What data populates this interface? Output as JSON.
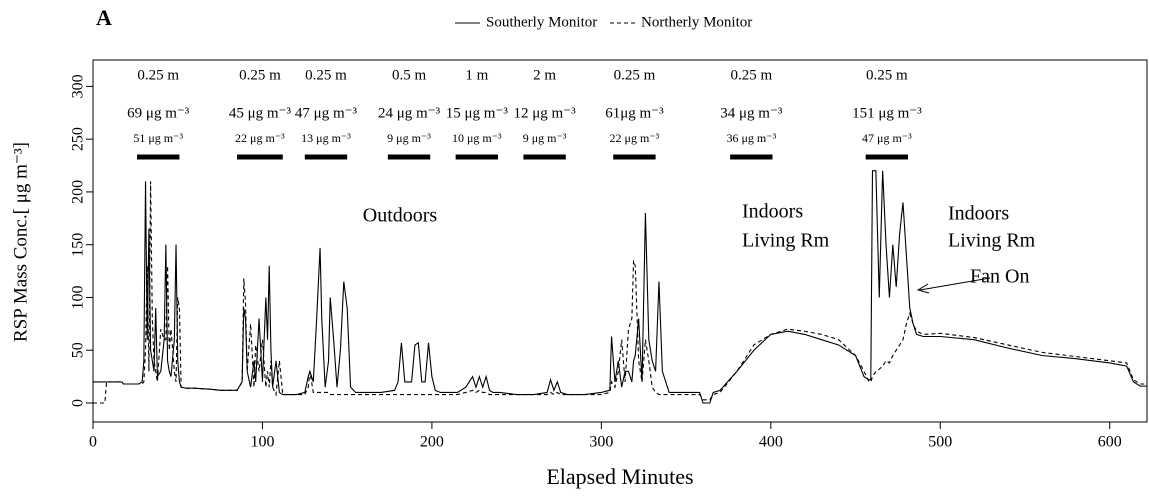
{
  "chart_data": {
    "type": "line",
    "panel_label": "A",
    "xlabel": "Elapsed Minutes",
    "ylabel": "RSP Mass Conc.[ μg m⁻³]",
    "xlim": [
      0,
      622
    ],
    "ylim": [
      -18,
      325
    ],
    "xticks": [
      0,
      100,
      200,
      300,
      400,
      500,
      600
    ],
    "yticks": [
      0,
      50,
      100,
      150,
      200,
      250,
      300
    ],
    "grid": false,
    "legend": "top",
    "x": [
      0,
      7,
      8,
      17,
      18,
      27,
      29,
      30,
      31,
      32,
      33,
      34,
      35,
      36,
      37,
      38,
      40,
      42,
      43,
      44,
      45,
      46,
      48,
      49,
      50,
      51,
      52,
      55,
      60,
      70,
      75,
      80,
      85,
      88,
      89,
      90,
      91,
      93,
      95,
      96,
      98,
      100,
      102,
      103,
      104,
      105,
      106,
      108,
      110,
      112,
      115,
      120,
      125,
      127,
      128,
      130,
      132,
      134,
      135,
      137,
      139,
      140,
      142,
      144,
      146,
      148,
      150,
      152,
      155,
      160,
      170,
      178,
      180,
      182,
      184,
      186,
      188,
      190,
      192,
      194,
      196,
      198,
      200,
      202,
      205,
      210,
      215,
      220,
      224,
      226,
      228,
      230,
      232,
      234,
      236,
      240,
      250,
      260,
      268,
      270,
      272,
      274,
      276,
      280,
      290,
      300,
      305,
      306,
      308,
      310,
      312,
      314,
      316,
      318,
      319,
      320,
      322,
      324,
      326,
      328,
      330,
      332,
      334,
      336,
      340,
      350,
      358,
      360,
      364,
      366,
      370,
      380,
      390,
      400,
      410,
      420,
      430,
      440,
      450,
      455,
      458,
      459,
      460,
      462,
      464,
      466,
      468,
      470,
      472,
      474,
      476,
      478,
      480,
      482,
      484,
      486,
      490,
      500,
      520,
      540,
      560,
      580,
      600,
      610,
      614,
      618,
      622
    ],
    "series": [
      {
        "name": "Southerly Monitor",
        "color": "#000000",
        "line_style": "solid",
        "values": [
          20,
          20,
          20,
          20,
          18,
          18,
          20,
          40,
          210,
          60,
          165,
          50,
          40,
          30,
          90,
          25,
          30,
          60,
          150,
          40,
          30,
          25,
          60,
          150,
          40,
          20,
          15,
          14,
          14,
          13,
          12,
          12,
          12,
          20,
          90,
          80,
          30,
          15,
          40,
          20,
          80,
          20,
          100,
          60,
          130,
          50,
          15,
          40,
          10,
          8,
          8,
          8,
          10,
          25,
          30,
          20,
          80,
          147,
          80,
          15,
          40,
          100,
          60,
          15,
          50,
          115,
          90,
          15,
          10,
          10,
          10,
          12,
          20,
          57,
          20,
          20,
          20,
          55,
          57,
          20,
          20,
          57,
          25,
          12,
          10,
          10,
          10,
          15,
          25,
          15,
          25,
          15,
          25,
          12,
          10,
          10,
          8,
          8,
          10,
          22,
          12,
          20,
          10,
          8,
          8,
          10,
          12,
          63,
          20,
          40,
          15,
          30,
          30,
          20,
          40,
          45,
          80,
          20,
          180,
          60,
          40,
          30,
          115,
          30,
          10,
          10,
          10,
          0,
          0,
          10,
          12,
          30,
          50,
          65,
          68,
          65,
          60,
          55,
          45,
          25,
          22,
          22,
          220,
          220,
          100,
          220,
          150,
          100,
          150,
          110,
          160,
          190,
          140,
          90,
          75,
          65,
          63,
          63,
          60,
          52,
          45,
          42,
          38,
          35,
          20,
          16,
          16
        ]
      },
      {
        "name": "Northerly Monitor",
        "color": "#000000",
        "line_style": "dashed",
        "values": [
          0,
          0,
          20,
          20,
          18,
          18,
          18,
          20,
          50,
          130,
          30,
          210,
          80,
          40,
          30,
          20,
          70,
          60,
          60,
          130,
          50,
          70,
          30,
          20,
          100,
          90,
          15,
          14,
          14,
          13,
          12,
          12,
          12,
          20,
          118,
          95,
          30,
          75,
          15,
          55,
          30,
          60,
          15,
          30,
          15,
          40,
          15,
          8,
          40,
          8,
          8,
          8,
          8,
          15,
          30,
          10,
          10,
          10,
          10,
          10,
          10,
          8,
          8,
          8,
          8,
          8,
          8,
          8,
          8,
          8,
          8,
          8,
          8,
          8,
          8,
          8,
          8,
          8,
          8,
          8,
          8,
          8,
          8,
          8,
          8,
          8,
          8,
          10,
          12,
          10,
          12,
          10,
          10,
          8,
          8,
          8,
          8,
          8,
          8,
          10,
          8,
          10,
          8,
          8,
          8,
          8,
          10,
          20,
          15,
          30,
          60,
          20,
          70,
          80,
          135,
          130,
          40,
          20,
          60,
          40,
          15,
          10,
          8,
          8,
          8,
          8,
          8,
          3,
          3,
          8,
          10,
          30,
          55,
          65,
          70,
          68,
          65,
          60,
          45,
          30,
          20,
          20,
          25,
          30,
          32,
          35,
          40,
          38,
          45,
          50,
          55,
          60,
          75,
          85,
          75,
          68,
          65,
          66,
          62,
          55,
          48,
          44,
          40,
          38,
          22,
          18,
          18
        ]
      }
    ],
    "segments": [
      {
        "start": 26,
        "end": 51,
        "distance": "0.25 m",
        "rsp": "69 μg m⁻³",
        "rsp2": "51 μg m⁻³"
      },
      {
        "start": 85,
        "end": 112,
        "distance": "0.25 m",
        "rsp": "45 μg m⁻³",
        "rsp2": "22 μg m⁻³"
      },
      {
        "start": 125,
        "end": 150,
        "distance": "0.25 m",
        "rsp": "47 μg m⁻³",
        "rsp2": "13 μg m⁻³"
      },
      {
        "start": 174,
        "end": 199,
        "distance": "0.5 m",
        "rsp": "24 μg m⁻³",
        "rsp2": "9 μg m⁻³"
      },
      {
        "start": 214,
        "end": 239,
        "distance": "1 m",
        "rsp": "15 μg m⁻³",
        "rsp2": "10 μg m⁻³"
      },
      {
        "start": 254,
        "end": 279,
        "distance": "2 m",
        "rsp": "12 μg m⁻³",
        "rsp2": "9 μg m⁻³"
      },
      {
        "start": 307,
        "end": 332,
        "distance": "0.25 m",
        "rsp": "61μg m⁻³",
        "rsp2": "22 μg m⁻³"
      },
      {
        "start": 376,
        "end": 401,
        "distance": "0.25 m",
        "rsp": "34 μg m⁻³",
        "rsp2": "36 μg m⁻³"
      },
      {
        "start": 456,
        "end": 481,
        "distance": "0.25 m",
        "rsp": "151 μg m⁻³",
        "rsp2": "47 μg m⁻³"
      }
    ],
    "annotations": [
      "Outdoors",
      "Indoors",
      "Living Rm",
      "Indoors",
      "Living Rm",
      "Fan On"
    ]
  }
}
